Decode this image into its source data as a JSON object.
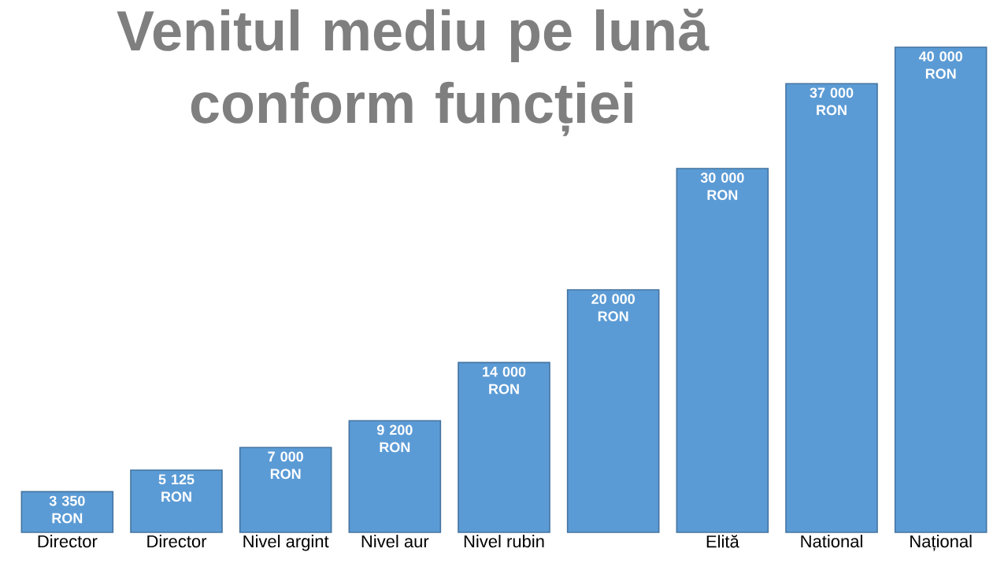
{
  "chart_data": {
    "type": "bar",
    "title": "Venitul mediu pe lună conform funcției",
    "categories": [
      "Director",
      "Director",
      "Nivel argint",
      "Nivel aur",
      "Nivel rubin",
      null,
      "Elită",
      "National",
      "Național"
    ],
    "values": [
      3350,
      5125,
      7000,
      9200,
      14000,
      20000,
      30000,
      37000,
      40000
    ],
    "value_labels": [
      "3 350 RON",
      "5 125 RON",
      "7 000 RON",
      "9 200 RON",
      "14 000 RON",
      "20 000 RON",
      "30 000 RON",
      "37 000 RON",
      "40 000 RON"
    ],
    "color": "#5b9bd5",
    "ylim": [
      0,
      40000
    ]
  }
}
